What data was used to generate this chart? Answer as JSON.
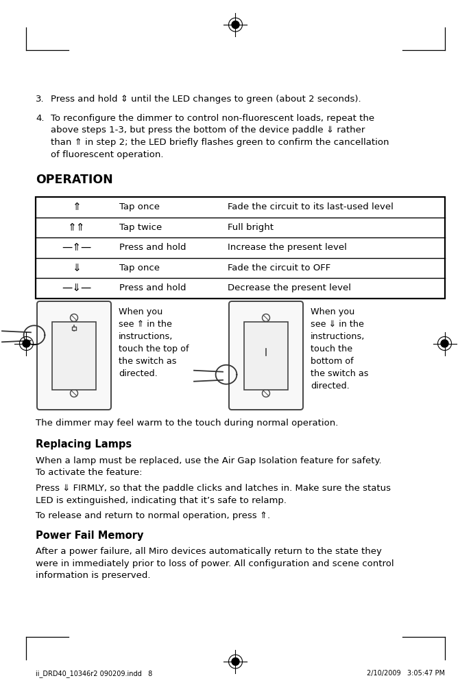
{
  "bg_color": "#ffffff",
  "page_width": 6.87,
  "page_height": 10.01,
  "font_family": "DejaVu Sans",
  "step3": "Press and hold ⇕ until the LED changes to green (about 2 seconds).",
  "step4": "To reconfigure the dimmer to control non-fluorescent loads, repeat the\nabove steps 1-3, but press the bottom of the device paddle ⇓ rather\nthan ⇑ in step 2; the LED briefly flashes green to confirm the cancellation\nof fluorescent operation.",
  "section_operation": "OPERATION",
  "table_rows": [
    [
      "⇑",
      "Tap once",
      "Fade the circuit to its last-used level"
    ],
    [
      "⇑⇑",
      "Tap twice",
      "Full bright"
    ],
    [
      "—⇑—",
      "Press and hold",
      "Increase the present level"
    ],
    [
      "⇓",
      "Tap once",
      "Fade the circuit to OFF"
    ],
    [
      "—⇓—",
      "Press and hold",
      "Decrease the present level"
    ]
  ],
  "left_switch_text": "When you\nsee ⇑ in the\ninstructions,\ntouch the top of\nthe switch as\ndirected.",
  "right_switch_text": "When you\nsee ⇓ in the\ninstructions,\ntouch the\nbottom of\nthe switch as\ndirected.",
  "warm_text": "The dimmer may feel warm to the touch during normal operation.",
  "section_lamps": "Replacing Lamps",
  "replacing_p1": "When a lamp must be replaced, use the Air Gap Isolation feature for safety.\nTo activate the feature:",
  "replacing_p2": "Press ⇓ FIRMLY, so that the paddle clicks and latches in. Make sure the status\nLED is extinguished, indicating that it’s safe to relamp.",
  "replacing_p3": "To release and return to normal operation, press ⇑.",
  "section_power": "Power Fail Memory",
  "power_text": "After a power failure, all Miro devices automatically return to the state they\nwere in immediately prior to loss of power. All configuration and scene control\ninformation is preserved.",
  "footer_left": "ii_DRD40_10346r2 090209.indd   8",
  "footer_right": "2/10/2009   3:05:47 PM"
}
